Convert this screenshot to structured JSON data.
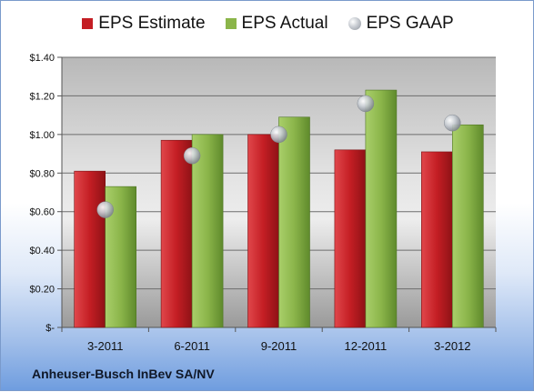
{
  "company": "Anheuser-Busch InBev SA/NV",
  "legend": {
    "estimate": "EPS Estimate",
    "actual": "EPS Actual",
    "gaap": "EPS GAAP"
  },
  "colors": {
    "estimate": "#c41e24",
    "actual": "#8bb54a",
    "gaap": "#b5bac1"
  },
  "chart_data": {
    "type": "bar",
    "categories": [
      "3-2011",
      "6-2011",
      "9-2011",
      "12-2011",
      "3-2012"
    ],
    "series": [
      {
        "name": "EPS Estimate",
        "values": [
          0.81,
          0.97,
          1.0,
          0.92,
          0.91
        ]
      },
      {
        "name": "EPS Actual",
        "values": [
          0.73,
          1.0,
          1.09,
          1.23,
          1.05
        ]
      },
      {
        "name": "EPS GAAP",
        "values": [
          0.61,
          0.89,
          1.0,
          1.16,
          1.06
        ]
      }
    ],
    "ylim": [
      0,
      1.4
    ],
    "yticks": [
      0,
      0.2,
      0.4,
      0.6,
      0.8,
      1.0,
      1.2,
      1.4
    ],
    "ytick_labels": [
      "$-",
      "$0.20",
      "$0.40",
      "$0.60",
      "$0.80",
      "$1.00",
      "$1.20",
      "$1.40"
    ],
    "grid": true,
    "legend_position": "top"
  }
}
